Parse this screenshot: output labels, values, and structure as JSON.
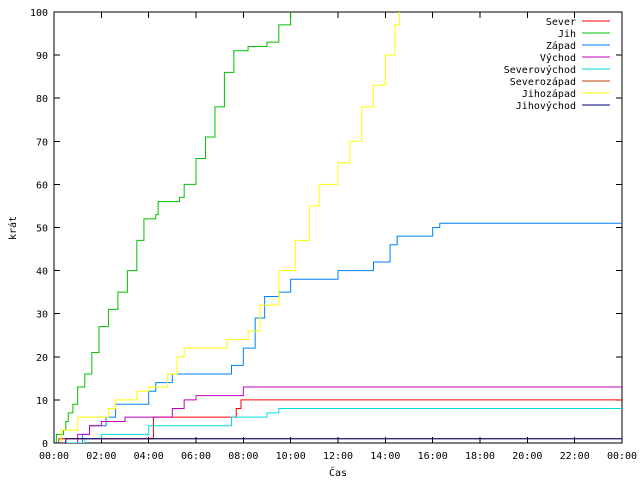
{
  "chart_data": {
    "type": "line",
    "xlabel": "Čas",
    "ylabel": "krát",
    "x_ticks": [
      "00:00",
      "02:00",
      "04:00",
      "06:00",
      "08:00",
      "10:00",
      "12:00",
      "14:00",
      "16:00",
      "18:00",
      "20:00",
      "22:00",
      "00:00"
    ],
    "x_range_hours": [
      0,
      24
    ],
    "ylim": [
      0,
      100
    ],
    "y_ticks": [
      0,
      10,
      20,
      30,
      40,
      50,
      60,
      70,
      80,
      90,
      100
    ],
    "grid": false,
    "legend_position": "top-right",
    "series": [
      {
        "name": "Sever",
        "color": "#ff0000",
        "points": [
          [
            0,
            0
          ],
          [
            0.3,
            1
          ],
          [
            4.2,
            6
          ],
          [
            7.7,
            8
          ],
          [
            7.9,
            10
          ],
          [
            24,
            10
          ]
        ]
      },
      {
        "name": "Jih",
        "color": "#00c000",
        "points": [
          [
            0,
            0
          ],
          [
            0.1,
            2
          ],
          [
            0.4,
            3
          ],
          [
            0.5,
            5
          ],
          [
            0.6,
            7
          ],
          [
            0.8,
            9
          ],
          [
            1.0,
            13
          ],
          [
            1.3,
            16
          ],
          [
            1.6,
            21
          ],
          [
            1.9,
            27
          ],
          [
            2.3,
            31
          ],
          [
            2.7,
            35
          ],
          [
            3.1,
            40
          ],
          [
            3.5,
            47
          ],
          [
            3.8,
            52
          ],
          [
            4.3,
            53
          ],
          [
            4.4,
            56
          ],
          [
            5.3,
            57
          ],
          [
            5.5,
            60
          ],
          [
            6.0,
            66
          ],
          [
            6.4,
            71
          ],
          [
            6.8,
            78
          ],
          [
            7.2,
            86
          ],
          [
            7.6,
            91
          ],
          [
            8.2,
            92
          ],
          [
            9.0,
            93
          ],
          [
            9.5,
            97
          ],
          [
            10.0,
            100
          ]
        ]
      },
      {
        "name": "Západ",
        "color": "#0080ff",
        "points": [
          [
            0,
            0
          ],
          [
            1.2,
            2
          ],
          [
            1.5,
            4
          ],
          [
            2.2,
            6
          ],
          [
            2.6,
            9
          ],
          [
            4.0,
            12
          ],
          [
            4.3,
            14
          ],
          [
            5.0,
            16
          ],
          [
            7.5,
            18
          ],
          [
            8.0,
            22
          ],
          [
            8.5,
            29
          ],
          [
            8.9,
            34
          ],
          [
            9.5,
            35
          ],
          [
            10.0,
            38
          ],
          [
            12.0,
            40
          ],
          [
            13.5,
            42
          ],
          [
            14.2,
            46
          ],
          [
            14.5,
            48
          ],
          [
            16.0,
            50
          ],
          [
            16.3,
            51
          ],
          [
            24,
            51
          ]
        ]
      },
      {
        "name": "Východ",
        "color": "#c000c0",
        "points": [
          [
            0,
            0
          ],
          [
            1.0,
            2
          ],
          [
            1.5,
            4
          ],
          [
            2.0,
            5
          ],
          [
            3.0,
            6
          ],
          [
            5.0,
            8
          ],
          [
            5.5,
            10
          ],
          [
            6.0,
            11
          ],
          [
            8.0,
            13
          ],
          [
            24,
            13
          ]
        ]
      },
      {
        "name": "Severovýchod",
        "color": "#00e0e0",
        "points": [
          [
            0,
            0
          ],
          [
            1.3,
            1
          ],
          [
            2.0,
            2
          ],
          [
            4.0,
            4
          ],
          [
            7.5,
            6
          ],
          [
            9.0,
            7
          ],
          [
            9.5,
            8
          ],
          [
            24,
            8
          ]
        ]
      },
      {
        "name": "Severozápad",
        "color": "#c04000",
        "points": [
          [
            0,
            0
          ],
          [
            0.2,
            1
          ],
          [
            0.5,
            1
          ],
          [
            24,
            1
          ]
        ]
      },
      {
        "name": "Jihozápad",
        "color": "#ffff00",
        "points": [
          [
            0,
            0
          ],
          [
            0.3,
            3
          ],
          [
            1.0,
            6
          ],
          [
            2.3,
            8
          ],
          [
            2.6,
            10
          ],
          [
            3.5,
            12
          ],
          [
            4.0,
            13
          ],
          [
            4.8,
            16
          ],
          [
            5.2,
            20
          ],
          [
            5.5,
            22
          ],
          [
            7.3,
            24
          ],
          [
            8.2,
            26
          ],
          [
            8.7,
            32
          ],
          [
            9.5,
            40
          ],
          [
            10.2,
            47
          ],
          [
            10.8,
            55
          ],
          [
            11.2,
            60
          ],
          [
            12.0,
            65
          ],
          [
            12.5,
            70
          ],
          [
            13.0,
            78
          ],
          [
            13.5,
            83
          ],
          [
            14.0,
            90
          ],
          [
            14.4,
            97
          ],
          [
            14.6,
            100
          ]
        ]
      },
      {
        "name": "Jihovýchod",
        "color": "#000080",
        "points": [
          [
            0,
            0
          ],
          [
            0.5,
            1
          ],
          [
            24,
            1
          ]
        ]
      }
    ]
  }
}
